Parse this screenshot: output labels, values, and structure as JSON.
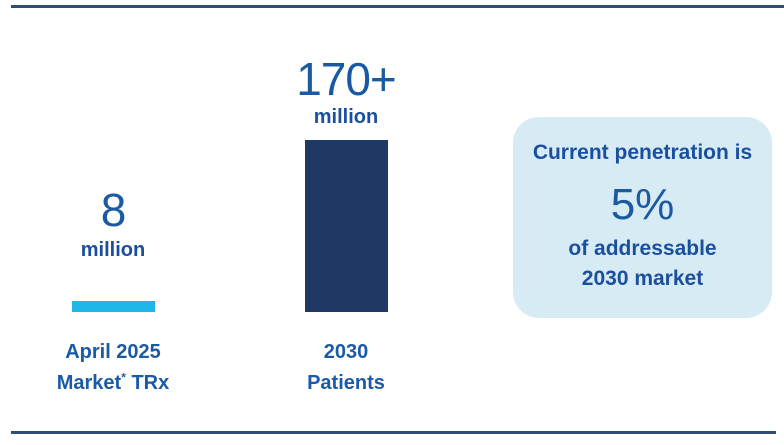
{
  "chart_data": {
    "type": "bar",
    "title": "",
    "categories": [
      "April 2025 Market* TRx",
      "2030 Patients"
    ],
    "values": [
      8,
      170
    ],
    "unit": "million",
    "value_labels": [
      "8 million",
      "170+ million"
    ],
    "bar_colors": [
      "#1db8e8",
      "#1f3864"
    ],
    "ylim": [
      0,
      180
    ],
    "grid": false,
    "legend": "none",
    "annotation": "Current penetration is 5% of addressable 2030 market"
  },
  "bars": [
    {
      "value": "8",
      "unit": "million",
      "label_line1": "April 2025",
      "label_line2_word": "Market",
      "label_line2_sup": "*",
      "label_line2_rest": "TRx",
      "color": "#1db8e8"
    },
    {
      "value": "170+",
      "unit": "million",
      "label_line1": "2030",
      "label_line2_word": "Patients",
      "color": "#1f3864"
    }
  ],
  "callout": {
    "intro": "Current penetration is",
    "value": "5%",
    "detail_line1": "of addressable",
    "detail_line2": "2030 market",
    "background": "#d6ebf4"
  },
  "colors": {
    "accent_cyan": "#1db8e8",
    "navy": "#1f3864",
    "number_blue": "#1a5aa3",
    "label_blue": "#1b4f9e",
    "rule": "#2f4d75",
    "callout_bg": "#d6ebf4"
  }
}
